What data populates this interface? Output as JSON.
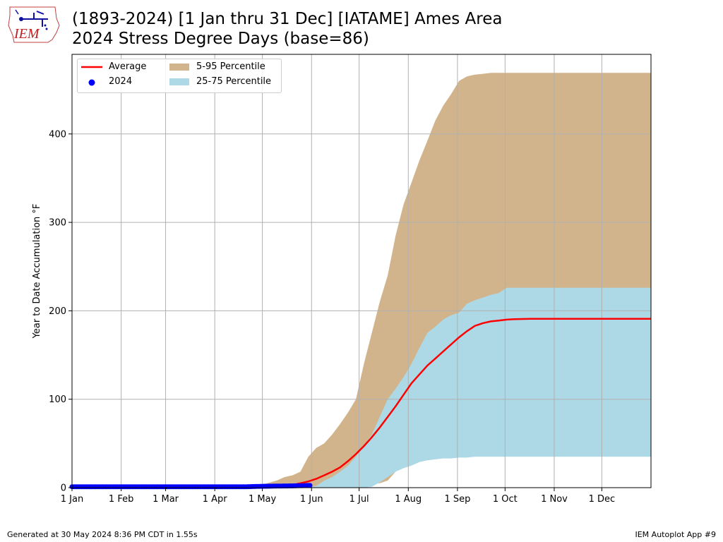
{
  "header": {
    "title_line1": "(1893-2024) [1 Jan thru 31 Dec] [IATAME] Ames Area",
    "title_line2": "2024 Stress Degree Days (base=86)"
  },
  "logo": {
    "text": "IEM"
  },
  "footer": {
    "generated": "Generated at 30 May 2024 8:36 PM CDT in 1.55s",
    "app": "IEM Autoplot App #9"
  },
  "chart_data": {
    "type": "area",
    "ylabel": "Year to Date Accumulation °F",
    "xlabel": "",
    "ylim": [
      0,
      490
    ],
    "yticks": [
      0,
      100,
      200,
      300,
      400
    ],
    "xlim_doy": [
      1,
      366
    ],
    "xticks": [
      {
        "label": "1 Jan",
        "doy": 1
      },
      {
        "label": "1 Feb",
        "doy": 32
      },
      {
        "label": "1 Mar",
        "doy": 60
      },
      {
        "label": "1 Apr",
        "doy": 91
      },
      {
        "label": "1 May",
        "doy": 121
      },
      {
        "label": "1 Jun",
        "doy": 152
      },
      {
        "label": "1 Jul",
        "doy": 182
      },
      {
        "label": "1 Aug",
        "doy": 213
      },
      {
        "label": "1 Sep",
        "doy": 244
      },
      {
        "label": "1 Oct",
        "doy": 274
      },
      {
        "label": "1 Nov",
        "doy": 305
      },
      {
        "label": "1 Dec",
        "doy": 335
      }
    ],
    "grid": true,
    "legend_position": "upper-left",
    "colors": {
      "average": "#ff0000",
      "current": "#0000ff",
      "p5_95": "#d2b48c",
      "p25_75": "#add8e6"
    },
    "legend": [
      {
        "label": "Average",
        "kind": "line"
      },
      {
        "label": "2024",
        "kind": "dot"
      },
      {
        "label": "5-95 Percentile",
        "kind": "patch"
      },
      {
        "label": "25-75 Percentile",
        "kind": "patch"
      }
    ],
    "series": [
      {
        "name": "Average",
        "doy": [
          1,
          110,
          120,
          130,
          140,
          145,
          150,
          155,
          160,
          165,
          170,
          175,
          180,
          185,
          190,
          195,
          200,
          205,
          210,
          215,
          220,
          225,
          230,
          235,
          240,
          245,
          250,
          255,
          260,
          265,
          270,
          275,
          280,
          290,
          300,
          366
        ],
        "values": [
          0,
          0.5,
          1,
          2,
          3,
          5,
          7,
          10,
          14,
          18,
          23,
          30,
          38,
          47,
          57,
          68,
          80,
          92,
          105,
          118,
          128,
          138,
          146,
          154,
          162,
          170,
          177,
          183,
          186,
          188,
          189,
          190,
          190.5,
          191,
          191,
          191
        ]
      },
      {
        "name": "2024",
        "doy": [
          1,
          20,
          40,
          60,
          80,
          100,
          110,
          120,
          130,
          140,
          145,
          150,
          151
        ],
        "values": [
          1,
          1,
          1,
          1,
          1,
          1,
          1,
          1.5,
          1.8,
          2,
          2.2,
          2.5,
          2.5
        ]
      },
      {
        "name": "5-95 Percentile",
        "doy": [
          1,
          100,
          110,
          120,
          130,
          135,
          140,
          145,
          150,
          155,
          160,
          165,
          170,
          175,
          180,
          185,
          190,
          195,
          200,
          205,
          210,
          215,
          220,
          225,
          230,
          235,
          240,
          245,
          250,
          255,
          260,
          265,
          270,
          275,
          280,
          366
        ],
        "lower": [
          0,
          0,
          0,
          0,
          0,
          0,
          0,
          0,
          0,
          0,
          0,
          0,
          0,
          0,
          0,
          2,
          5,
          5,
          8,
          18,
          28,
          45,
          58,
          62,
          68,
          78,
          88,
          95,
          102,
          107,
          110,
          110,
          112,
          112,
          112,
          112
        ],
        "upper": [
          0,
          0,
          0,
          3,
          8,
          12,
          14,
          18,
          35,
          45,
          50,
          60,
          72,
          85,
          100,
          140,
          175,
          210,
          240,
          285,
          320,
          345,
          370,
          392,
          415,
          432,
          445,
          460,
          465,
          467,
          468,
          469,
          469,
          469,
          469,
          469
        ]
      },
      {
        "name": "25-75 Percentile",
        "doy": [
          1,
          150,
          155,
          160,
          165,
          170,
          175,
          180,
          185,
          190,
          195,
          200,
          205,
          210,
          215,
          220,
          225,
          230,
          235,
          240,
          245,
          250,
          255,
          260,
          265,
          270,
          275,
          280,
          366
        ],
        "lower": [
          0,
          0,
          0,
          0,
          0,
          0,
          0,
          0,
          0,
          1,
          6,
          12,
          18,
          22,
          25,
          29,
          31,
          32,
          33,
          33,
          34,
          34,
          35,
          35,
          35,
          35,
          35,
          35,
          35
        ],
        "upper": [
          0,
          0,
          2,
          8,
          12,
          18,
          25,
          35,
          48,
          60,
          80,
          100,
          112,
          125,
          140,
          158,
          175,
          182,
          190,
          195,
          198,
          208,
          212,
          215,
          218,
          220,
          226,
          226,
          226
        ]
      }
    ]
  }
}
